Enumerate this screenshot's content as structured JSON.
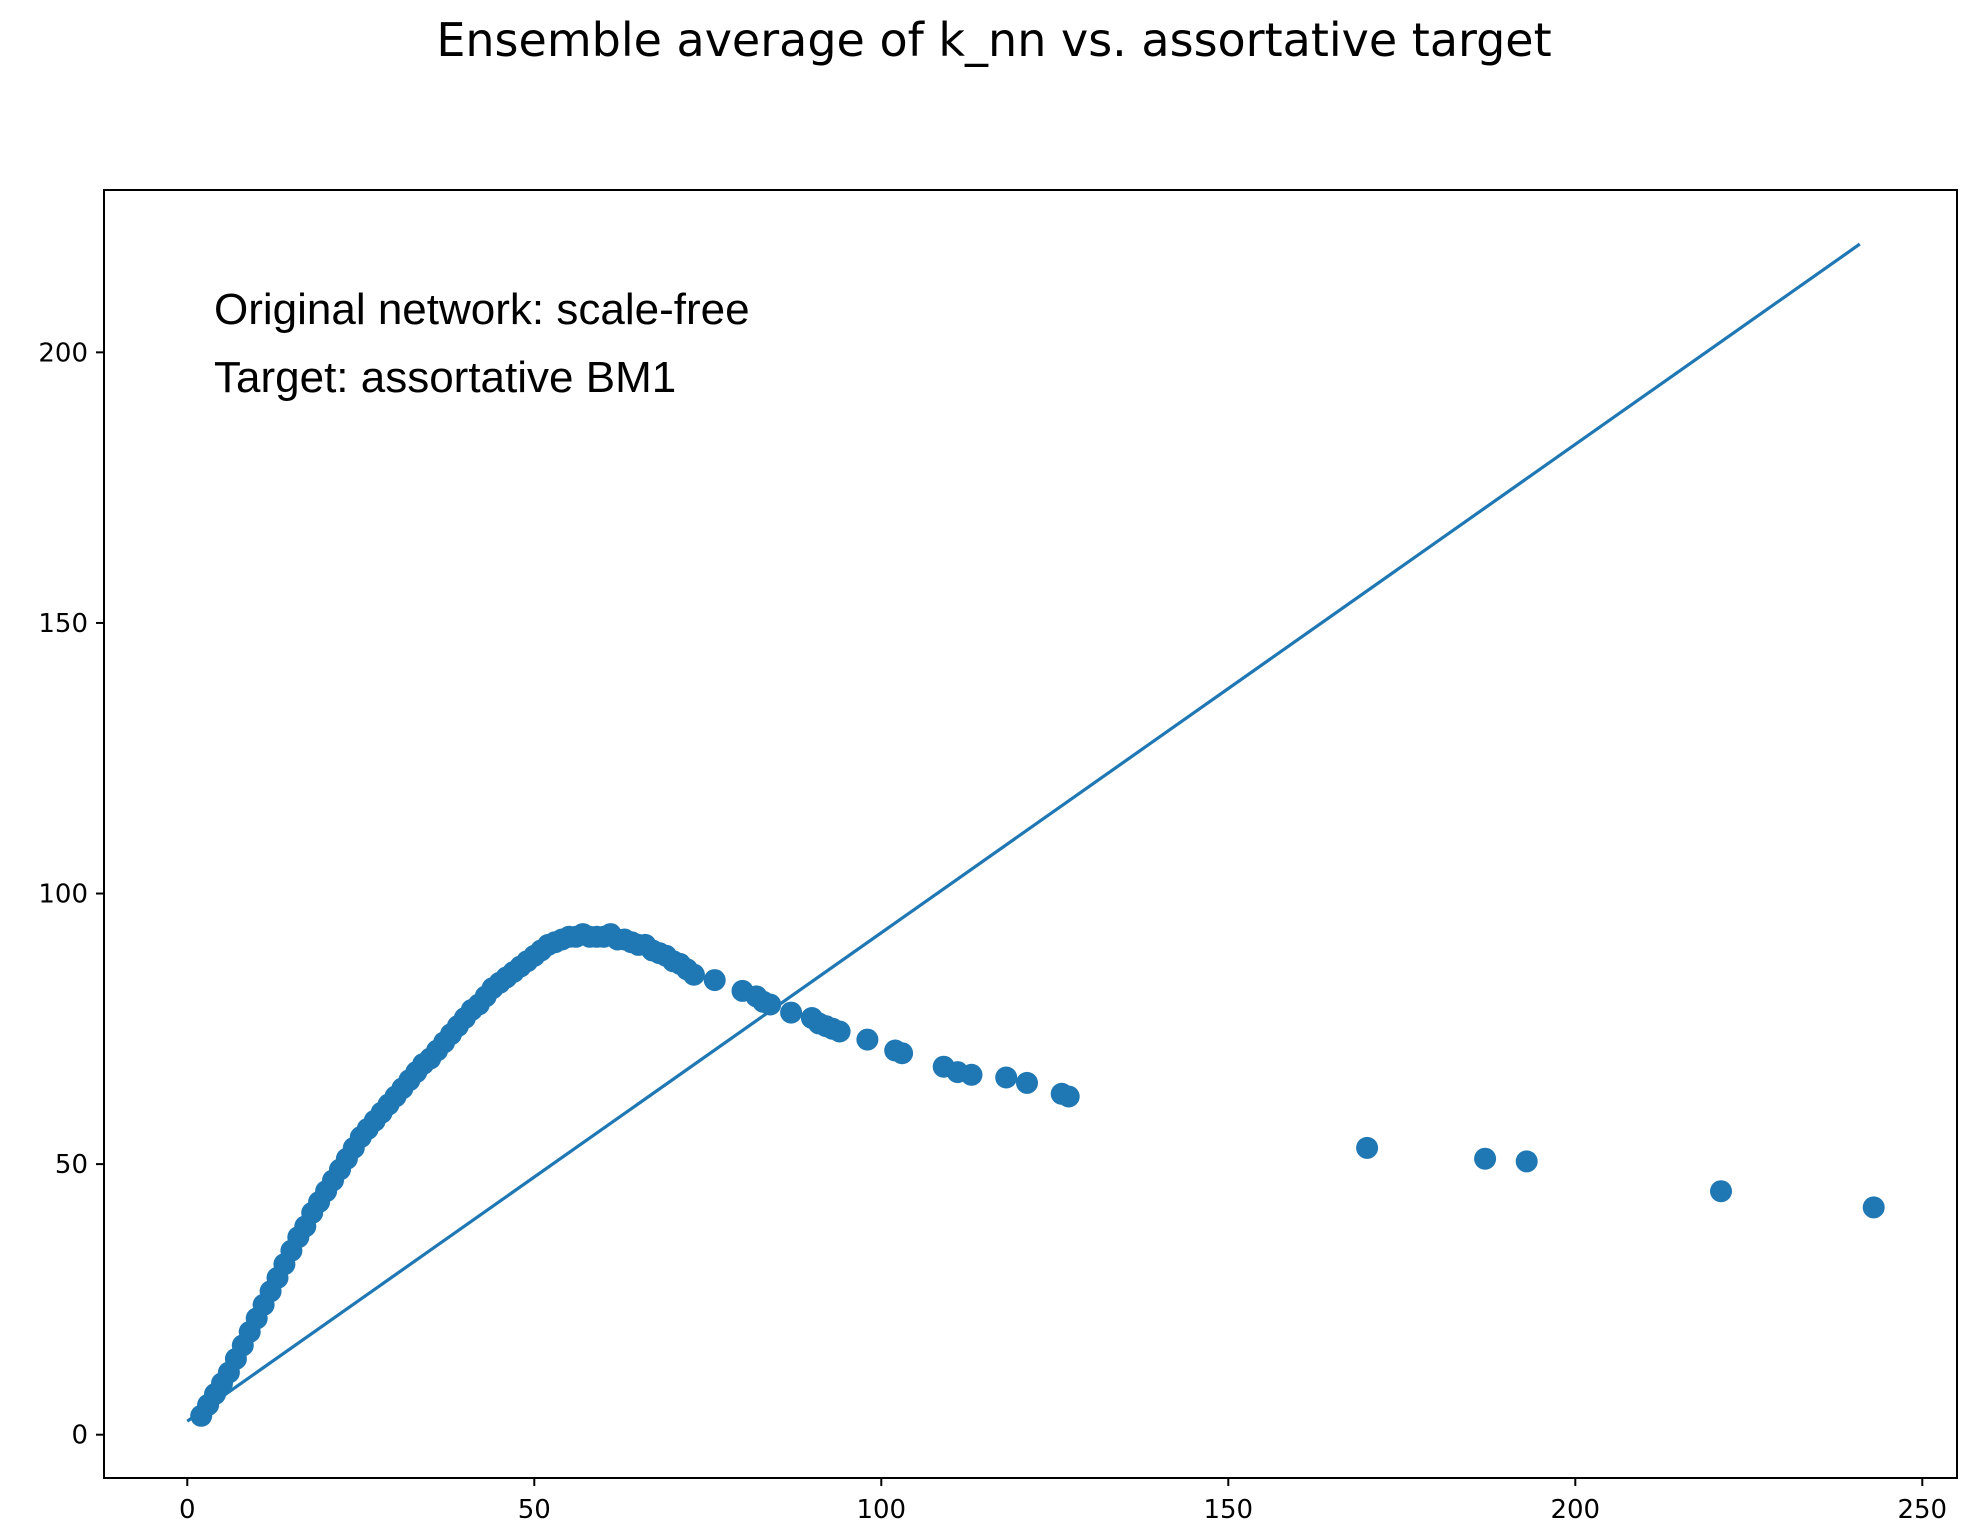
{
  "chart_data": {
    "type": "scatter",
    "title": "Ensemble average of k_nn vs. assortative target",
    "xlabel": "",
    "ylabel": "",
    "xlim": [
      -12,
      255
    ],
    "ylim": [
      -8,
      230
    ],
    "xticks": [
      0,
      50,
      100,
      150,
      200,
      250
    ],
    "yticks": [
      0,
      50,
      100,
      150,
      200
    ],
    "annotation": [
      "Original network: scale-free",
      "Target: assortative BM1"
    ],
    "color": "#1f77b4",
    "grid": false,
    "series": [
      {
        "kind": "line",
        "x": [
          0,
          241
        ],
        "y": [
          2.5,
          220
        ]
      },
      {
        "kind": "scatter",
        "x": [
          2,
          3,
          4,
          5,
          6,
          7,
          8,
          9,
          10,
          11,
          12,
          13,
          14,
          15,
          16,
          17,
          18,
          19,
          20,
          21,
          22,
          23,
          24,
          25,
          26,
          27,
          28,
          29,
          30,
          31,
          32,
          33,
          34,
          35,
          36,
          37,
          38,
          39,
          40,
          41,
          42,
          43,
          44,
          45,
          46,
          47,
          48,
          49,
          50,
          51,
          52,
          53,
          54,
          55,
          56,
          57,
          58,
          59,
          60,
          61,
          62,
          63,
          64,
          65,
          66,
          67,
          68,
          69,
          70,
          71,
          72,
          73,
          76,
          80,
          82,
          83,
          84,
          87,
          90,
          91,
          92,
          93,
          94,
          98,
          102,
          103,
          109,
          111,
          113,
          118,
          121,
          126,
          127,
          170,
          187,
          193,
          221,
          243
        ],
        "y": [
          3.5,
          5.5,
          7.5,
          9.5,
          11.5,
          14,
          16.5,
          19,
          21.5,
          24,
          26.5,
          29,
          31.5,
          34,
          36.5,
          38.5,
          41,
          43,
          45,
          47,
          49,
          51,
          53,
          55,
          56.5,
          58,
          59.5,
          61,
          62.5,
          64,
          65.5,
          67,
          68.5,
          69.5,
          71,
          72.5,
          74,
          75.5,
          77,
          78.5,
          79.5,
          81,
          82.5,
          83.5,
          84.5,
          85.5,
          86.5,
          87.5,
          88.5,
          89.5,
          90.5,
          91,
          91.5,
          92,
          92,
          92.5,
          92,
          92,
          92,
          92.5,
          91.5,
          91.5,
          91,
          90.5,
          90.5,
          89.5,
          89,
          88.5,
          87.5,
          87,
          86,
          85,
          84,
          82,
          81,
          80,
          79.5,
          78,
          77,
          76,
          75.5,
          75,
          74.5,
          73,
          71,
          70.5,
          68,
          67,
          66.5,
          66,
          65,
          63,
          62.5,
          53,
          51,
          50.5,
          45,
          42
        ]
      }
    ]
  }
}
